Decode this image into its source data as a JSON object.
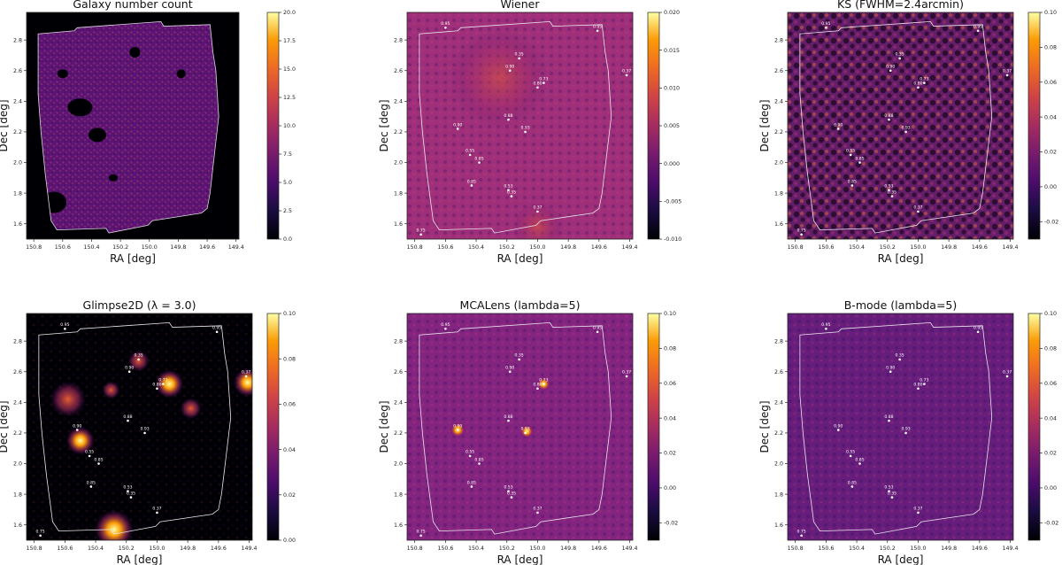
{
  "chart_data": [
    {
      "type": "heatmap",
      "title": "Galaxy number count",
      "xlabel": "RA [deg]",
      "ylabel": "Dec [deg]",
      "xlim": [
        150.85,
        149.38
      ],
      "ylim": [
        1.5,
        2.98
      ],
      "xticks": [
        "150.8",
        "150.6",
        "150.4",
        "150.2",
        "150.0",
        "149.8",
        "149.6",
        "149.4"
      ],
      "yticks": [
        "1.6",
        "1.8",
        "2.0",
        "2.2",
        "2.4",
        "2.6",
        "2.8"
      ],
      "colorbar": {
        "min": 0,
        "max": 20,
        "ticks": [
          "0.0",
          "2.5",
          "5.0",
          "7.5",
          "10.0",
          "12.5",
          "15.0",
          "17.5",
          "20.0"
        ]
      },
      "background": "#000004",
      "texture": "#5a1473",
      "peaks": []
    },
    {
      "type": "heatmap",
      "title": "Wiener",
      "xlabel": "RA [deg]",
      "ylabel": "Dec [deg]",
      "xlim": [
        150.85,
        149.38
      ],
      "ylim": [
        1.5,
        2.98
      ],
      "xticks": [
        "150.8",
        "150.6",
        "150.4",
        "150.2",
        "150.0",
        "149.8",
        "149.6",
        "149.4"
      ],
      "yticks": [
        "1.6",
        "1.8",
        "2.0",
        "2.2",
        "2.4",
        "2.6",
        "2.8"
      ],
      "colorbar": {
        "min": -0.01,
        "max": 0.02,
        "ticks": [
          "-0.010",
          "-0.005",
          "0.000",
          "0.005",
          "0.010",
          "0.015",
          "0.020"
        ]
      },
      "background": "#8c2981",
      "texture": "#c23c6d",
      "peaks": [
        {
          "ra": 150.6,
          "dec": 2.88,
          "label": "0.95"
        },
        {
          "ra": 149.61,
          "dec": 2.86,
          "label": "0.95"
        },
        {
          "ra": 150.12,
          "dec": 2.68,
          "label": "0.35"
        },
        {
          "ra": 150.18,
          "dec": 2.6,
          "label": "0.90"
        },
        {
          "ra": 149.96,
          "dec": 2.52,
          "label": "0.73"
        },
        {
          "ra": 150.0,
          "dec": 2.49,
          "label": "0.80"
        },
        {
          "ra": 149.42,
          "dec": 2.57,
          "label": "0.37"
        },
        {
          "ra": 150.19,
          "dec": 2.28,
          "label": "0.88"
        },
        {
          "ra": 150.52,
          "dec": 2.22,
          "label": "0.90"
        },
        {
          "ra": 150.08,
          "dec": 2.2,
          "label": "0.93"
        },
        {
          "ra": 150.44,
          "dec": 2.05,
          "label": "0.55"
        },
        {
          "ra": 150.38,
          "dec": 2.0,
          "label": "0.85"
        },
        {
          "ra": 150.43,
          "dec": 1.85,
          "label": "0.85"
        },
        {
          "ra": 150.19,
          "dec": 1.82,
          "label": "0.53"
        },
        {
          "ra": 150.17,
          "dec": 1.78,
          "label": "0.35"
        },
        {
          "ra": 150.0,
          "dec": 1.68,
          "label": "0.37"
        },
        {
          "ra": 150.76,
          "dec": 1.53,
          "label": "0.75"
        }
      ]
    },
    {
      "type": "heatmap",
      "title": "KS (FWHM=2.4arcmin)",
      "xlabel": "RA [deg]",
      "ylabel": "Dec [deg]",
      "xlim": [
        150.85,
        149.38
      ],
      "ylim": [
        1.5,
        2.98
      ],
      "xticks": [
        "150.8",
        "150.6",
        "150.4",
        "150.2",
        "150.0",
        "149.8",
        "149.6",
        "149.4"
      ],
      "yticks": [
        "1.6",
        "1.8",
        "2.0",
        "2.2",
        "2.4",
        "2.6",
        "2.8"
      ],
      "colorbar": {
        "min": -0.03,
        "max": 0.1,
        "ticks": [
          "-0.02",
          "0.00",
          "0.02",
          "0.04",
          "0.06",
          "0.08",
          "0.10"
        ]
      },
      "background": "#400f6b",
      "texture": "#d1485f",
      "peaks": [
        {
          "ra": 150.6,
          "dec": 2.88,
          "label": "0.95"
        },
        {
          "ra": 149.61,
          "dec": 2.86,
          "label": "0.95"
        },
        {
          "ra": 150.12,
          "dec": 2.68,
          "label": "0.35"
        },
        {
          "ra": 150.18,
          "dec": 2.6,
          "label": "0.90"
        },
        {
          "ra": 149.96,
          "dec": 2.52,
          "label": "0.73"
        },
        {
          "ra": 150.0,
          "dec": 2.49,
          "label": "0.80"
        },
        {
          "ra": 149.42,
          "dec": 2.57,
          "label": "0.37"
        },
        {
          "ra": 150.19,
          "dec": 2.28,
          "label": "0.88"
        },
        {
          "ra": 150.52,
          "dec": 2.22,
          "label": "0.90"
        },
        {
          "ra": 150.08,
          "dec": 2.2,
          "label": "0.93"
        },
        {
          "ra": 150.44,
          "dec": 2.05,
          "label": "0.55"
        },
        {
          "ra": 150.38,
          "dec": 2.0,
          "label": "0.85"
        },
        {
          "ra": 150.43,
          "dec": 1.85,
          "label": "0.85"
        },
        {
          "ra": 150.19,
          "dec": 1.82,
          "label": "0.53"
        },
        {
          "ra": 150.17,
          "dec": 1.78,
          "label": "0.35"
        },
        {
          "ra": 150.0,
          "dec": 1.68,
          "label": "0.37"
        },
        {
          "ra": 150.76,
          "dec": 1.53,
          "label": "0.75"
        }
      ]
    },
    {
      "type": "heatmap",
      "title": "Glimpse2D (λ = 3.0)",
      "xlabel": "RA [deg]",
      "ylabel": "Dec [deg]",
      "xlim": [
        150.85,
        149.38
      ],
      "ylim": [
        1.5,
        2.98
      ],
      "xticks": [
        "150.8",
        "150.6",
        "150.4",
        "150.2",
        "150.0",
        "149.8",
        "149.6",
        "149.4"
      ],
      "yticks": [
        "1.6",
        "1.8",
        "2.0",
        "2.2",
        "2.4",
        "2.6",
        "2.8"
      ],
      "colorbar": {
        "min": 0.0,
        "max": 0.1,
        "ticks": [
          "0.00",
          "0.02",
          "0.04",
          "0.06",
          "0.08",
          "0.10"
        ]
      },
      "background": "#000004",
      "texture": "#1b0c41",
      "peaks": [
        {
          "ra": 150.6,
          "dec": 2.88,
          "label": "0.95"
        },
        {
          "ra": 149.61,
          "dec": 2.86,
          "label": "0.95"
        },
        {
          "ra": 150.12,
          "dec": 2.68,
          "label": "0.35"
        },
        {
          "ra": 150.18,
          "dec": 2.6,
          "label": "0.90"
        },
        {
          "ra": 149.96,
          "dec": 2.52,
          "label": "0.73"
        },
        {
          "ra": 150.0,
          "dec": 2.49,
          "label": "0.80"
        },
        {
          "ra": 149.42,
          "dec": 2.57,
          "label": "0.37"
        },
        {
          "ra": 150.19,
          "dec": 2.28,
          "label": "0.88"
        },
        {
          "ra": 150.52,
          "dec": 2.22,
          "label": "0.90"
        },
        {
          "ra": 150.08,
          "dec": 2.2,
          "label": "0.93"
        },
        {
          "ra": 150.44,
          "dec": 2.05,
          "label": "0.55"
        },
        {
          "ra": 150.38,
          "dec": 2.0,
          "label": "0.85"
        },
        {
          "ra": 150.43,
          "dec": 1.85,
          "label": "0.85"
        },
        {
          "ra": 150.19,
          "dec": 1.82,
          "label": "0.53"
        },
        {
          "ra": 150.17,
          "dec": 1.78,
          "label": "0.35"
        },
        {
          "ra": 150.0,
          "dec": 1.68,
          "label": "0.37"
        },
        {
          "ra": 150.76,
          "dec": 1.53,
          "label": "0.75"
        }
      ]
    },
    {
      "type": "heatmap",
      "title": "MCALens (lambda=5)",
      "xlabel": "RA [deg]",
      "ylabel": "Dec [deg]",
      "xlim": [
        150.85,
        149.38
      ],
      "ylim": [
        1.5,
        2.98
      ],
      "xticks": [
        "150.8",
        "150.6",
        "150.4",
        "150.2",
        "150.0",
        "149.8",
        "149.6",
        "149.4"
      ],
      "yticks": [
        "1.6",
        "1.8",
        "2.0",
        "2.2",
        "2.4",
        "2.6",
        "2.8"
      ],
      "colorbar": {
        "min": -0.03,
        "max": 0.1,
        "ticks": [
          "-0.02",
          "0.00",
          "0.02",
          "0.04",
          "0.06",
          "0.08",
          "0.10"
        ]
      },
      "background": "#731f81",
      "texture": "#a8327d",
      "peaks": [
        {
          "ra": 150.6,
          "dec": 2.88,
          "label": "0.95"
        },
        {
          "ra": 149.61,
          "dec": 2.86,
          "label": "0.95"
        },
        {
          "ra": 150.12,
          "dec": 2.68,
          "label": "0.35"
        },
        {
          "ra": 150.18,
          "dec": 2.6,
          "label": "0.90"
        },
        {
          "ra": 149.96,
          "dec": 2.52,
          "label": "0.73"
        },
        {
          "ra": 150.0,
          "dec": 2.49,
          "label": "0.80"
        },
        {
          "ra": 149.42,
          "dec": 2.57,
          "label": "0.37"
        },
        {
          "ra": 150.19,
          "dec": 2.28,
          "label": "0.88"
        },
        {
          "ra": 150.52,
          "dec": 2.22,
          "label": "0.90"
        },
        {
          "ra": 150.08,
          "dec": 2.2,
          "label": "0.93"
        },
        {
          "ra": 150.44,
          "dec": 2.05,
          "label": "0.55"
        },
        {
          "ra": 150.38,
          "dec": 2.0,
          "label": "0.85"
        },
        {
          "ra": 150.43,
          "dec": 1.85,
          "label": "0.85"
        },
        {
          "ra": 150.19,
          "dec": 1.82,
          "label": "0.53"
        },
        {
          "ra": 150.17,
          "dec": 1.78,
          "label": "0.35"
        },
        {
          "ra": 150.0,
          "dec": 1.68,
          "label": "0.37"
        },
        {
          "ra": 150.76,
          "dec": 1.53,
          "label": "0.75"
        }
      ]
    },
    {
      "type": "heatmap",
      "title": "B-mode (lambda=5)",
      "xlabel": "RA [deg]",
      "ylabel": "Dec [deg]",
      "xlim": [
        150.85,
        149.38
      ],
      "ylim": [
        1.5,
        2.98
      ],
      "xticks": [
        "150.8",
        "150.6",
        "150.4",
        "150.2",
        "150.0",
        "149.8",
        "149.6",
        "149.4"
      ],
      "yticks": [
        "1.6",
        "1.8",
        "2.0",
        "2.2",
        "2.4",
        "2.6",
        "2.8"
      ],
      "colorbar": {
        "min": -0.03,
        "max": 0.1,
        "ticks": [
          "-0.02",
          "0.00",
          "0.02",
          "0.04",
          "0.06",
          "0.08",
          "0.10"
        ]
      },
      "background": "#5c1a7a",
      "texture": "#7d2482",
      "peaks": [
        {
          "ra": 150.6,
          "dec": 2.88,
          "label": "0.95"
        },
        {
          "ra": 149.61,
          "dec": 2.86,
          "label": "0.95"
        },
        {
          "ra": 150.12,
          "dec": 2.68,
          "label": "0.35"
        },
        {
          "ra": 150.18,
          "dec": 2.6,
          "label": "0.90"
        },
        {
          "ra": 149.96,
          "dec": 2.52,
          "label": "0.73"
        },
        {
          "ra": 150.0,
          "dec": 2.49,
          "label": "0.80"
        },
        {
          "ra": 149.42,
          "dec": 2.57,
          "label": "0.37"
        },
        {
          "ra": 150.19,
          "dec": 2.28,
          "label": "0.88"
        },
        {
          "ra": 150.52,
          "dec": 2.22,
          "label": "0.90"
        },
        {
          "ra": 150.08,
          "dec": 2.2,
          "label": "0.93"
        },
        {
          "ra": 150.44,
          "dec": 2.05,
          "label": "0.55"
        },
        {
          "ra": 150.38,
          "dec": 2.0,
          "label": "0.85"
        },
        {
          "ra": 150.43,
          "dec": 1.85,
          "label": "0.85"
        },
        {
          "ra": 150.19,
          "dec": 1.82,
          "label": "0.53"
        },
        {
          "ra": 150.17,
          "dec": 1.78,
          "label": "0.35"
        },
        {
          "ra": 150.0,
          "dec": 1.68,
          "label": "0.37"
        },
        {
          "ra": 150.76,
          "dec": 1.53,
          "label": "0.75"
        }
      ]
    }
  ]
}
